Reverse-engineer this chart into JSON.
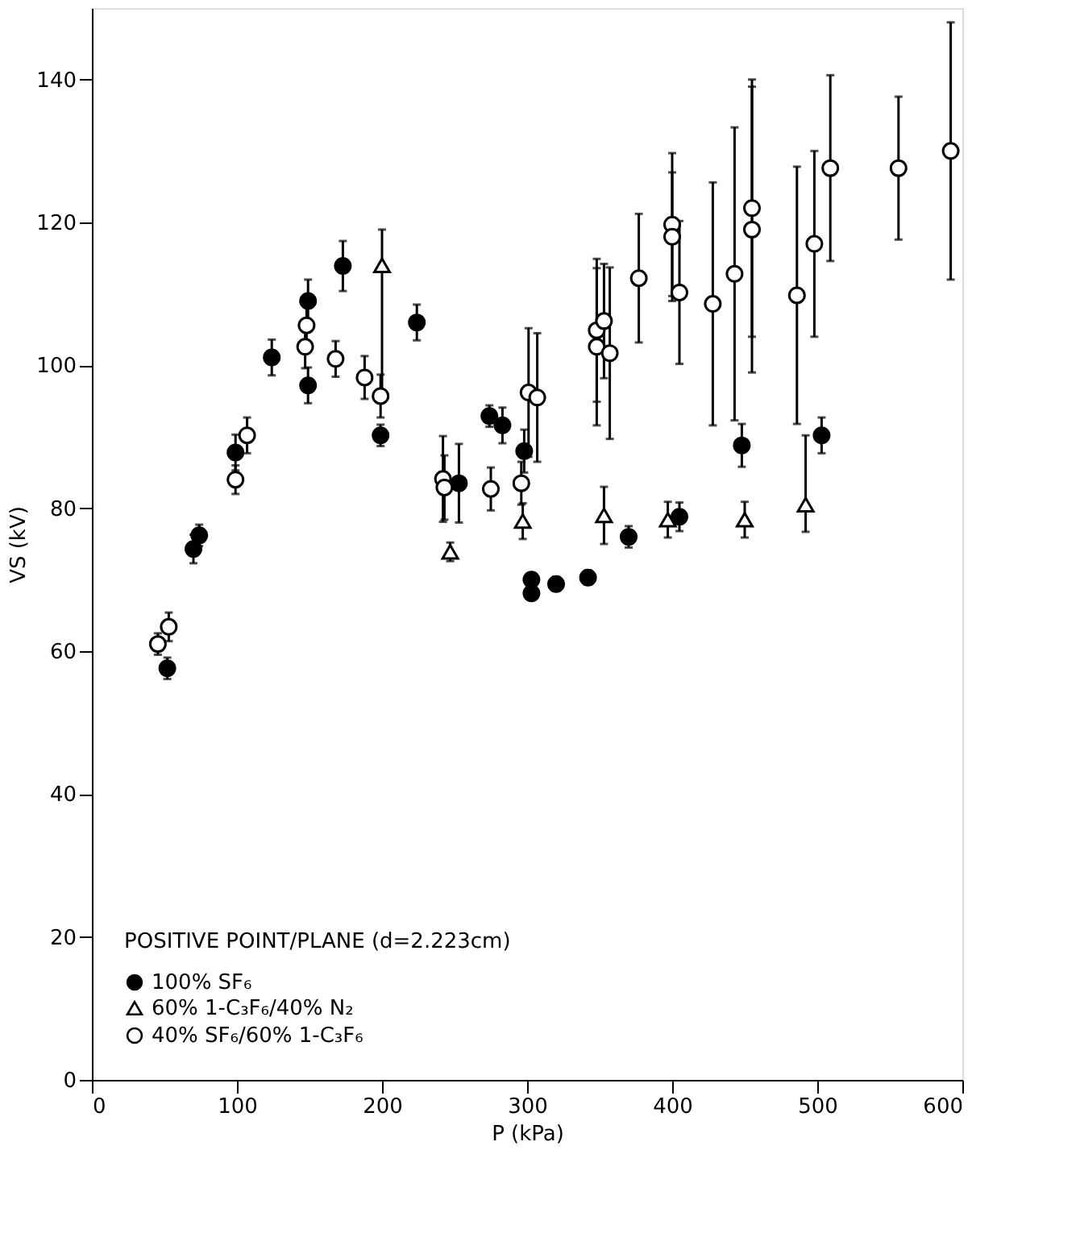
{
  "chart_data": {
    "type": "scatter",
    "xlabel": "P (kPa)",
    "ylabel": "VS (kV)",
    "legend_title": "POSITIVE POINT/PLANE  (d=2.223cm)",
    "legend": "bottom left",
    "grid": false,
    "xlim": [
      0,
      600
    ],
    "xticks": [
      0,
      100,
      200,
      300,
      400,
      500,
      600
    ],
    "ylim": [
      0,
      150
    ],
    "yticks": [
      0,
      20,
      40,
      60,
      80,
      100,
      120,
      140
    ],
    "series": [
      {
        "name": "100% SF₆",
        "color": "#000000",
        "marker": "circle",
        "x": [
          52,
          70,
          74,
          99,
          124,
          149,
          149,
          173,
          199,
          224,
          253,
          274,
          283,
          298,
          303,
          303,
          320,
          342,
          370,
          405,
          448,
          503
        ],
        "values": [
          57.6,
          74.3,
          76.2,
          87.8,
          101.1,
          109,
          97.2,
          113.9,
          90.2,
          106,
          83.5,
          92.9,
          91.6,
          88,
          70,
          68.1,
          69.4,
          70.3,
          76,
          78.8,
          88.8,
          90.2
        ],
        "errors": [
          1.5,
          2,
          1.5,
          2.5,
          2.5,
          3,
          2.5,
          3.5,
          1.5,
          2.5,
          5.5,
          1.5,
          2.5,
          3,
          0.8,
          0.8,
          1,
          1,
          1.5,
          2,
          3,
          2.5
        ]
      },
      {
        "name": "60% 1-C₃F₆/40% N₂",
        "color": "#000000",
        "marker": "triangle",
        "x": [
          200,
          247,
          297,
          353,
          397,
          450,
          492
        ],
        "values": [
          114,
          73.9,
          78.2,
          79,
          78.4,
          78.4,
          80.5
        ],
        "errors": [
          [
            96,
            119
          ],
          1.3,
          2.5,
          4,
          2.5,
          2.5,
          [
            76.7,
            90.2
          ]
        ]
      },
      {
        "name": "40% SF₆/60% 1-C₃F₆",
        "color": "#000000",
        "marker": "circle",
        "x": [
          45.5,
          53,
          99,
          107,
          147,
          148,
          168,
          188,
          199,
          242,
          243,
          275,
          296,
          301,
          307,
          348,
          348,
          353,
          357,
          377,
          400,
          400,
          405,
          428,
          443,
          455,
          455,
          486,
          498,
          509,
          556,
          592
        ],
        "values": [
          61,
          63.4,
          84,
          90.2,
          102.6,
          105.6,
          100.9,
          98.3,
          95.7,
          84.1,
          82.9,
          82.7,
          83.5,
          96.2,
          95.5,
          104.9,
          102.6,
          106.2,
          101.7,
          112.2,
          119.7,
          118,
          110.2,
          108.6,
          112.8,
          122,
          119,
          109.8,
          117,
          127.6,
          127.6,
          130
        ],
        "errors": [
          1.5,
          2,
          2,
          2.5,
          3,
          3,
          2.5,
          3,
          3,
          6,
          4.5,
          3,
          3,
          9,
          9,
          10,
          11,
          8,
          12,
          9,
          10,
          9,
          10,
          17,
          20.5,
          18,
          20,
          18,
          13,
          13,
          10,
          18
        ]
      }
    ]
  }
}
